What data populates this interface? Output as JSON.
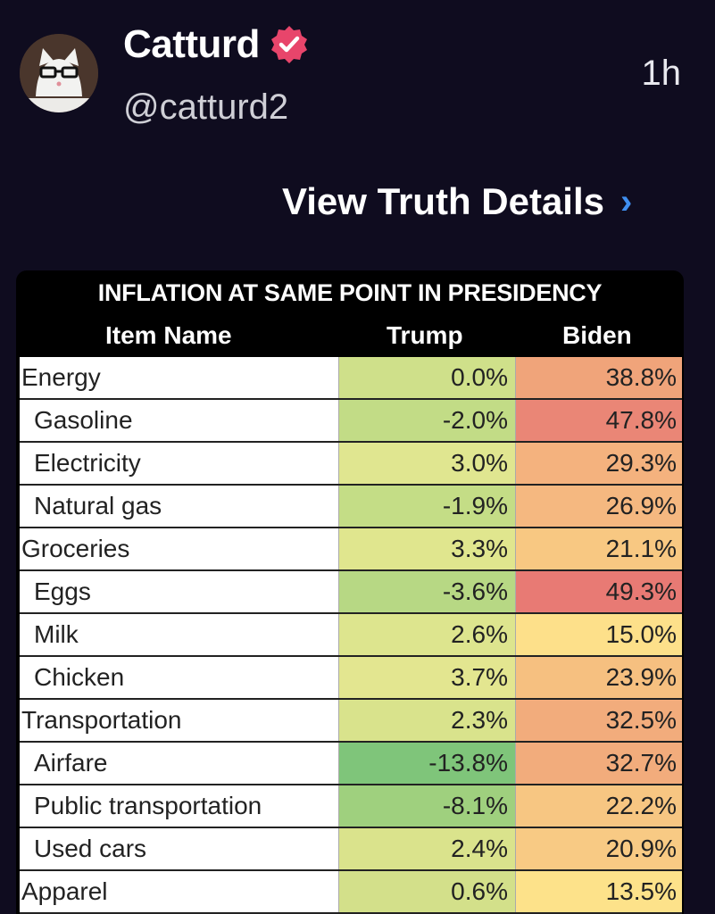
{
  "post": {
    "display_name": "Catturd",
    "handle": "@catturd2",
    "time": "1h",
    "view_details_label": "View Truth Details",
    "chevron": "›",
    "verified_icon": "verified-badge-icon",
    "verified_color": "#e8456b"
  },
  "table": {
    "title": "INFLATION AT SAME POINT IN PRESIDENCY",
    "headers": {
      "name": "Item Name",
      "trump": "Trump",
      "biden": "Biden"
    },
    "rows": [
      {
        "name": "Energy",
        "trump": "0.0%",
        "biden": "38.8%",
        "indent": false
      },
      {
        "name": "Gasoline",
        "trump": "-2.0%",
        "biden": "47.8%",
        "indent": true
      },
      {
        "name": "Electricity",
        "trump": "3.0%",
        "biden": "29.3%",
        "indent": true
      },
      {
        "name": "Natural gas",
        "trump": "-1.9%",
        "biden": "26.9%",
        "indent": true
      },
      {
        "name": "Groceries",
        "trump": "3.3%",
        "biden": "21.1%",
        "indent": false
      },
      {
        "name": "Eggs",
        "trump": "-3.6%",
        "biden": "49.3%",
        "indent": true
      },
      {
        "name": "Milk",
        "trump": "2.6%",
        "biden": "15.0%",
        "indent": true
      },
      {
        "name": "Chicken",
        "trump": "3.7%",
        "biden": "23.9%",
        "indent": true
      },
      {
        "name": "Transportation",
        "trump": "2.3%",
        "biden": "32.5%",
        "indent": false
      },
      {
        "name": "Airfare",
        "trump": "-13.8%",
        "biden": "32.7%",
        "indent": true
      },
      {
        "name": "Public transportation",
        "trump": "-8.1%",
        "biden": "22.2%",
        "indent": true
      },
      {
        "name": "Used cars",
        "trump": "2.4%",
        "biden": "20.9%",
        "indent": true
      },
      {
        "name": "Apparel",
        "trump": "0.6%",
        "biden": "13.5%",
        "indent": false
      }
    ],
    "trump_colors": [
      "#cfe08a",
      "#c2dc86",
      "#e0e690",
      "#c4dd86",
      "#e0e68e",
      "#b7d884",
      "#dde58e",
      "#e3e690",
      "#d9e38c",
      "#7fc57a",
      "#9fd07e",
      "#dae38c",
      "#d3e08a"
    ],
    "biden_colors": [
      "#f0a47a",
      "#ea8676",
      "#f4b27e",
      "#f5b880",
      "#f8c882",
      "#e87a74",
      "#fde08a",
      "#f6c080",
      "#f2ac7c",
      "#f2ac7c",
      "#f7c682",
      "#f8ca84",
      "#fde28a"
    ]
  }
}
